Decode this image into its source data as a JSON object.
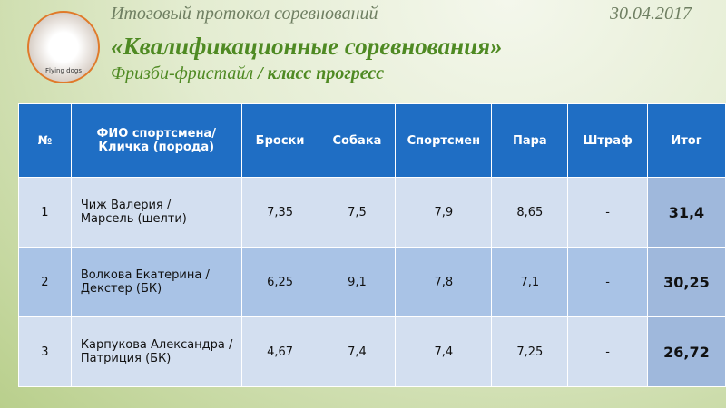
{
  "header": {
    "title": "Итоговый протокол соревнований",
    "date": "30.04.2017",
    "event": "«Квалификационные соревнования»",
    "discipline": "Фризби-фристайл",
    "separator": "/",
    "class": "класс прогресс",
    "logo_text": "Flying dogs"
  },
  "table": {
    "columns": [
      "№",
      [
        "ФИО спортсмена/",
        "Кличка (порода)"
      ],
      "Броски",
      "Собака",
      "Спортсмен",
      "Пара",
      "Штраф",
      "Итог"
    ],
    "rows": [
      [
        "1",
        [
          "Чиж Валерия /",
          "Марсель (шелти)"
        ],
        "7,35",
        "7,5",
        "7,9",
        "8,65",
        "-",
        "31,4"
      ],
      [
        "2",
        [
          "Волкова Екатерина /",
          "Декстер (БК)"
        ],
        "6,25",
        "9,1",
        "7,8",
        "7,1",
        "-",
        "30,25"
      ],
      [
        "3",
        [
          "Карпукова Александра /",
          "Патриция (БК)"
        ],
        "4,67",
        "7,4",
        "7,4",
        "7,25",
        "-",
        "26,72"
      ]
    ]
  }
}
